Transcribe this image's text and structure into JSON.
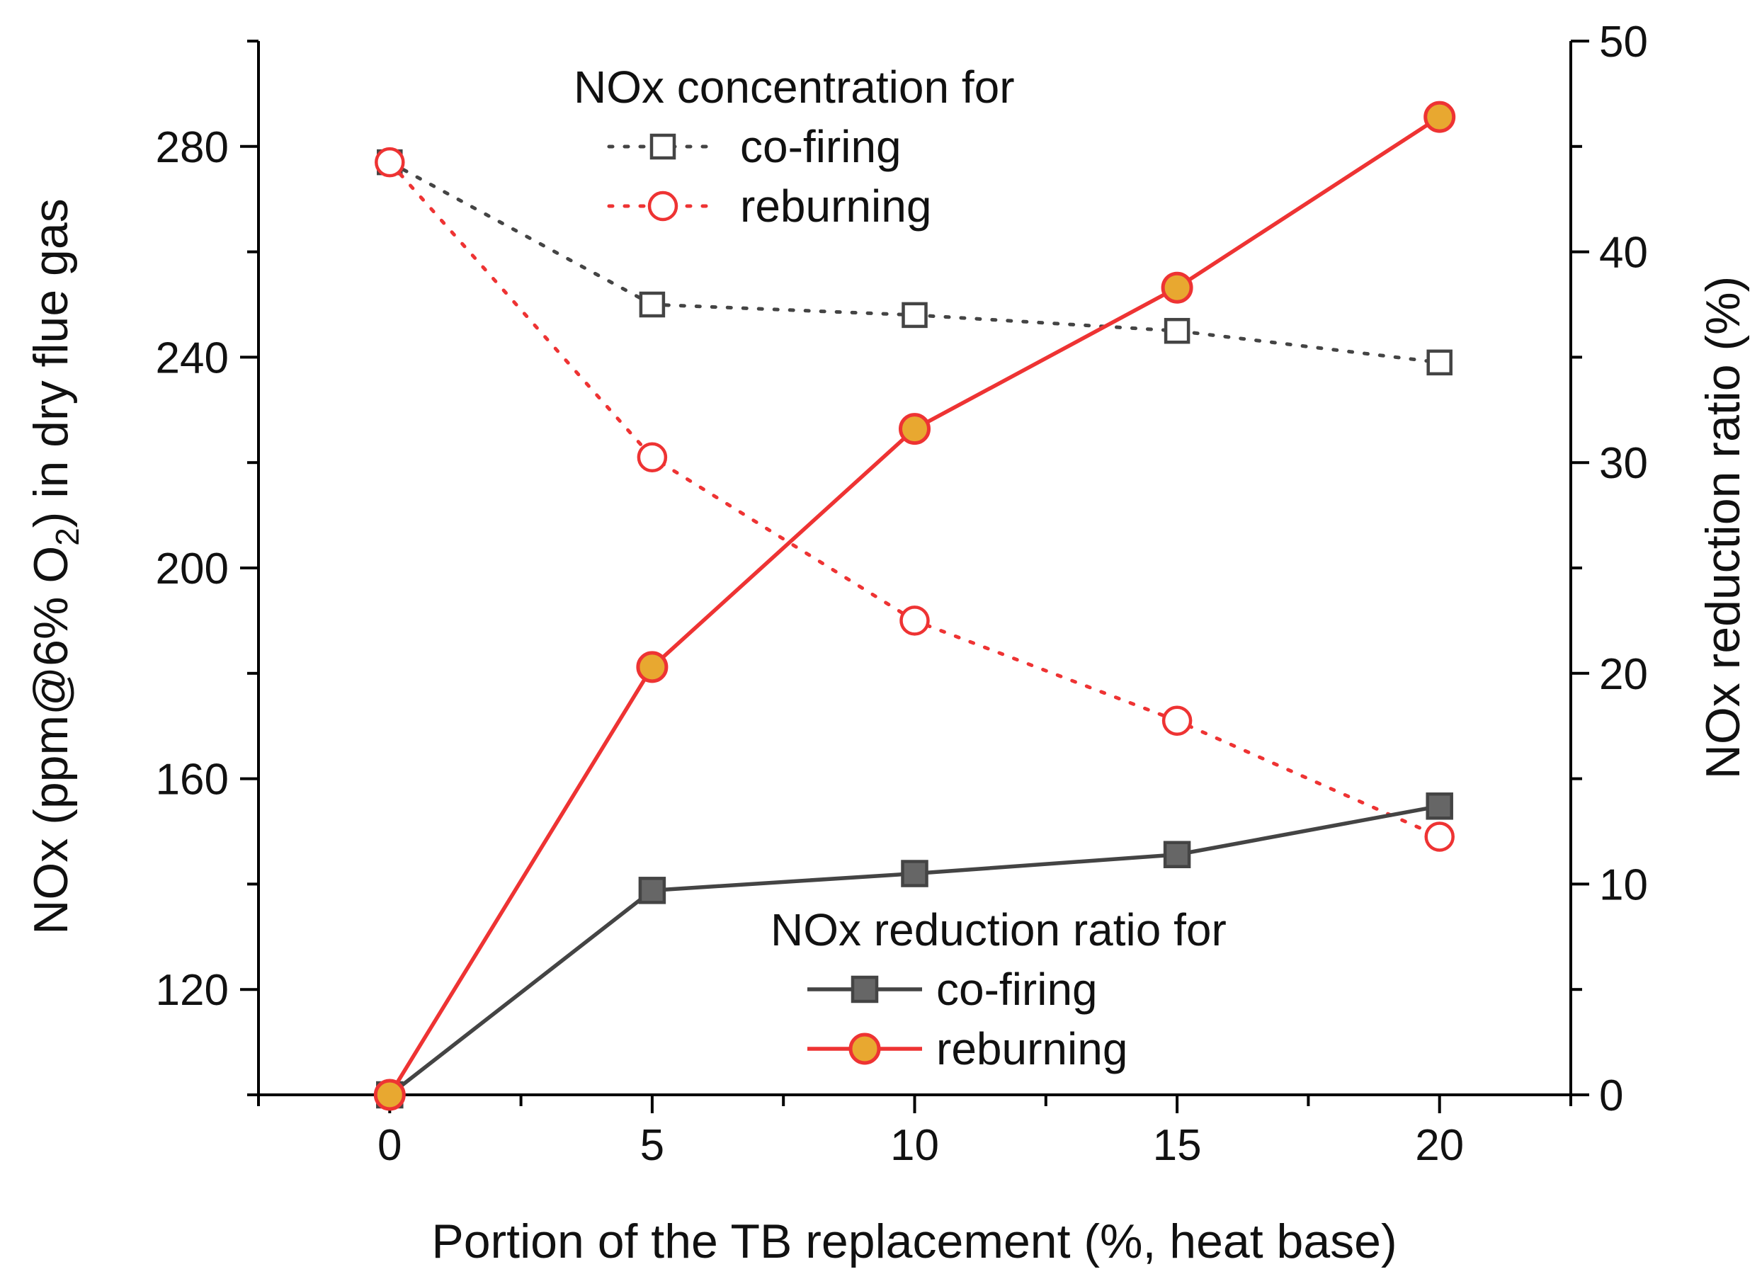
{
  "chart_data": {
    "type": "line",
    "xlabel": "Portion of the TB replacement (%, heat base)",
    "ylabel_left": {
      "prefix": "NOx (ppm@6% O",
      "subscript": "2",
      "suffix": ") in dry flue gas"
    },
    "ylabel_right": "NOx reduction ratio (%)",
    "x_ticks": [
      0,
      5,
      10,
      15,
      20
    ],
    "xlim": [
      -2.5,
      22.5
    ],
    "ylim_left": [
      100,
      300
    ],
    "y_ticks_left": [
      120,
      160,
      200,
      240,
      280
    ],
    "ylim_right": [
      0,
      50
    ],
    "y_ticks_right": [
      0,
      10,
      20,
      30,
      40,
      50
    ],
    "legend_concentration": {
      "title": "NOx concentration for",
      "entries": [
        "co-firing",
        "reburning"
      ]
    },
    "legend_reduction": {
      "title": "NOx reduction ratio for",
      "entries": [
        "co-firing",
        "reburning"
      ]
    },
    "series": [
      {
        "name": "co-firing",
        "group": "NOx concentration",
        "axis": "left",
        "style": "dotted",
        "marker": "open-square",
        "color": "#444444",
        "x": [
          0,
          5,
          10,
          15,
          20
        ],
        "values": [
          277,
          250,
          248,
          245,
          239
        ]
      },
      {
        "name": "reburning",
        "group": "NOx concentration",
        "axis": "left",
        "style": "dotted",
        "marker": "open-circle",
        "color": "#ee3333",
        "x": [
          0,
          5,
          10,
          15,
          20
        ],
        "values": [
          277,
          221,
          190,
          171,
          149
        ]
      },
      {
        "name": "co-firing",
        "group": "NOx reduction ratio",
        "axis": "right",
        "style": "solid",
        "marker": "filled-square",
        "color": "#444444",
        "fill": "#666666",
        "x": [
          0,
          5,
          10,
          15,
          20
        ],
        "values": [
          0,
          9.7,
          10.5,
          11.4,
          13.7
        ]
      },
      {
        "name": "reburning",
        "group": "NOx reduction ratio",
        "axis": "right",
        "style": "solid",
        "marker": "filled-circle",
        "color": "#ee3333",
        "fill": "#e8a830",
        "x": [
          0,
          5,
          10,
          15,
          20
        ],
        "values": [
          0,
          20.3,
          31.6,
          38.3,
          46.4
        ]
      }
    ]
  }
}
